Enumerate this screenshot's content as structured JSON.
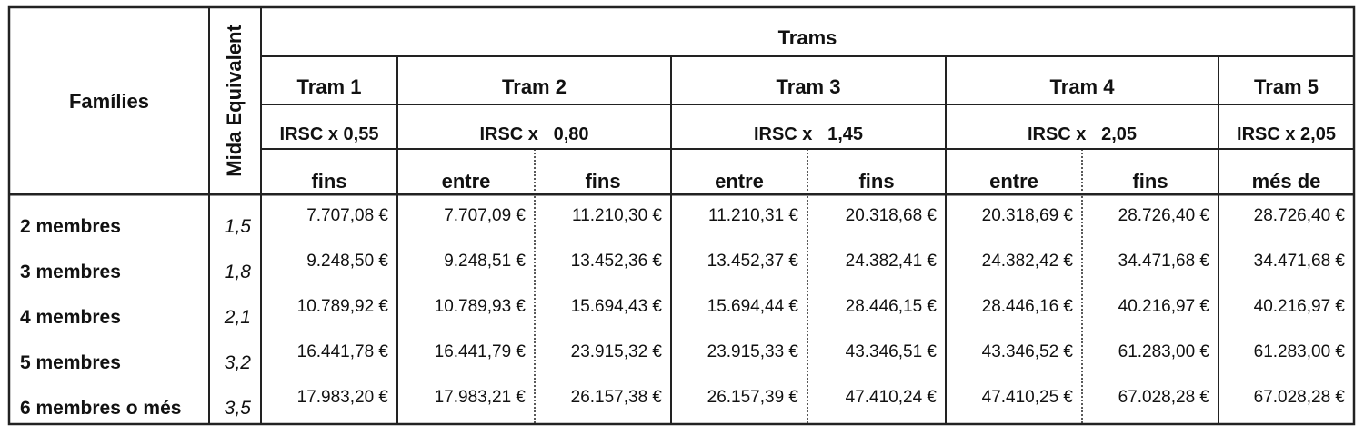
{
  "table": {
    "title": "Trams",
    "families": "Famílies",
    "mida": "Mida Equivalent",
    "trams": [
      {
        "name": "Tram 1",
        "factor": "IRSC x 0,55"
      },
      {
        "name": "Tram 2",
        "factor": "IRSC x   0,80"
      },
      {
        "name": "Tram 3",
        "factor": "IRSC x   1,45"
      },
      {
        "name": "Tram 4",
        "factor": "IRSC x   2,05"
      },
      {
        "name": "Tram 5",
        "factor": "IRSC x 2,05"
      }
    ],
    "subheaders": [
      "fins",
      "entre",
      "fins",
      "entre",
      "fins",
      "entre",
      "fins",
      "més de"
    ],
    "rows": [
      {
        "label": "2 membres",
        "mida": "1,5",
        "values": [
          "7.707,08 €",
          "7.707,09 €",
          "11.210,30 €",
          "11.210,31 €",
          "20.318,68 €",
          "20.318,69 €",
          "28.726,40 €",
          "28.726,40 €"
        ]
      },
      {
        "label": "3 membres",
        "mida": "1,8",
        "values": [
          "9.248,50 €",
          "9.248,51 €",
          "13.452,36 €",
          "13.452,37 €",
          "24.382,41 €",
          "24.382,42 €",
          "34.471,68 €",
          "34.471,68 €"
        ]
      },
      {
        "label": "4 membres",
        "mida": "2,1",
        "values": [
          "10.789,92 €",
          "10.789,93 €",
          "15.694,43 €",
          "15.694,44 €",
          "28.446,15 €",
          "28.446,16 €",
          "40.216,97 €",
          "40.216,97 €"
        ]
      },
      {
        "label": "5 membres",
        "mida": "3,2",
        "values": [
          "16.441,78 €",
          "16.441,79 €",
          "23.915,32 €",
          "23.915,33 €",
          "43.346,51 €",
          "43.346,52 €",
          "61.283,00 €",
          "61.283,00 €"
        ]
      },
      {
        "label": "6 membres o més",
        "mida": "3,5",
        "values": [
          "17.983,20 €",
          "17.983,21 €",
          "26.157,38 €",
          "26.157,39 €",
          "47.410,24 €",
          "47.410,25 €",
          "67.028,28 €",
          "67.028,28 €"
        ]
      }
    ]
  }
}
